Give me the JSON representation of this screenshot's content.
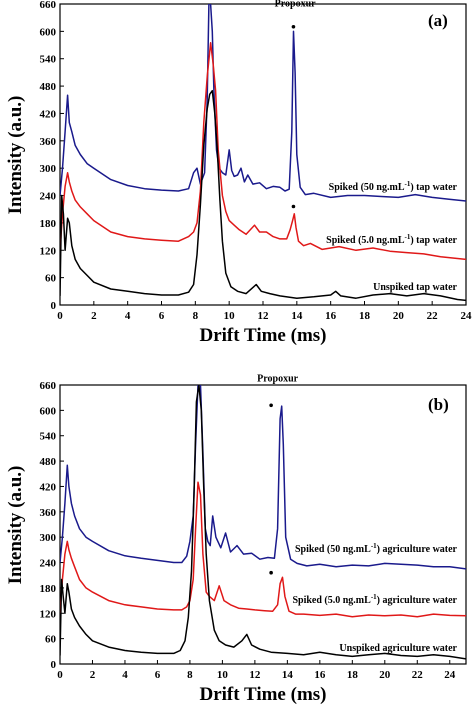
{
  "chart_data": [
    {
      "type": "line",
      "panel_label": "(a)",
      "xlabel": "Drift Time (ms)",
      "ylabel": "Intensity (a.u.)",
      "xlim": [
        0,
        24
      ],
      "ylim": [
        0,
        660
      ],
      "xticks": [
        0,
        2,
        4,
        6,
        8,
        10,
        12,
        14,
        16,
        18,
        20,
        22,
        24
      ],
      "yticks": [
        0,
        60,
        120,
        180,
        240,
        300,
        360,
        420,
        480,
        540,
        600,
        660
      ],
      "grid": false,
      "annotations": [
        {
          "text": "Propoxur",
          "x": 13.9,
          "y": 628
        }
      ],
      "series": [
        {
          "name": "Spiked (50 ng.mL-1) tap water",
          "label_parts": [
            "Spiked (50 ng.mL",
            "-1",
            ") tap water"
          ],
          "color": "#1a1a8c",
          "x": [
            0,
            0.15,
            0.3,
            0.45,
            0.55,
            0.7,
            0.9,
            1.2,
            1.6,
            2.0,
            3.0,
            4.0,
            5.0,
            6.0,
            7.0,
            7.6,
            7.9,
            8.1,
            8.3,
            8.55,
            8.7,
            8.8,
            8.9,
            9.0,
            9.1,
            9.25,
            9.4,
            9.6,
            9.8,
            10.0,
            10.15,
            10.3,
            10.5,
            10.7,
            10.9,
            11.1,
            11.4,
            11.8,
            12.2,
            12.6,
            13.0,
            13.3,
            13.55,
            13.7,
            13.8,
            13.9,
            14.0,
            14.2,
            14.5,
            15,
            16,
            17,
            18,
            19,
            20,
            21,
            22,
            23,
            24
          ],
          "y": [
            240,
            300,
            380,
            460,
            400,
            380,
            350,
            330,
            310,
            300,
            275,
            262,
            255,
            252,
            250,
            255,
            290,
            300,
            265,
            290,
            450,
            660,
            660,
            600,
            470,
            340,
            300,
            290,
            285,
            340,
            295,
            282,
            285,
            300,
            270,
            285,
            265,
            268,
            255,
            260,
            258,
            250,
            254,
            380,
            600,
            510,
            330,
            258,
            242,
            245,
            236,
            240,
            240,
            238,
            236,
            242,
            236,
            232,
            228
          ]
        },
        {
          "name": "Spiked (5.0 ng.mL-1) tap water",
          "label_parts": [
            "Spiked (5.0 ng.mL",
            "-1",
            ") tap water"
          ],
          "color": "#e01818",
          "x": [
            0,
            0.15,
            0.3,
            0.45,
            0.55,
            0.7,
            0.9,
            1.2,
            1.6,
            2.0,
            3.0,
            4.0,
            5.0,
            6.0,
            7.0,
            7.6,
            7.9,
            8.1,
            8.3,
            8.5,
            8.7,
            8.9,
            9.05,
            9.2,
            9.35,
            9.6,
            9.8,
            10.0,
            10.3,
            10.6,
            11.0,
            11.5,
            11.8,
            12.2,
            12.6,
            13.0,
            13.4,
            13.6,
            13.75,
            13.85,
            13.95,
            14.1,
            14.4,
            14.8,
            15.5,
            16.5,
            17.5,
            18.5,
            19.5,
            20.5,
            21.5,
            22.5,
            23.5,
            24
          ],
          "y": [
            120,
            200,
            260,
            290,
            270,
            250,
            230,
            215,
            200,
            185,
            160,
            150,
            145,
            142,
            140,
            150,
            160,
            180,
            250,
            400,
            500,
            575,
            530,
            470,
            340,
            240,
            205,
            185,
            175,
            165,
            155,
            175,
            160,
            160,
            150,
            145,
            145,
            165,
            185,
            200,
            170,
            140,
            130,
            135,
            122,
            128,
            120,
            125,
            118,
            115,
            112,
            106,
            102,
            100
          ]
        },
        {
          "name": "Unspiked tap water",
          "label_parts": [
            "Unspiked tap water",
            "",
            ""
          ],
          "color": "#000000",
          "x": [
            0,
            0.1,
            0.2,
            0.3,
            0.45,
            0.55,
            0.7,
            0.9,
            1.2,
            1.6,
            2.0,
            3.0,
            4.0,
            5.0,
            6.0,
            7.0,
            7.6,
            7.9,
            8.1,
            8.3,
            8.5,
            8.7,
            8.85,
            9.0,
            9.15,
            9.3,
            9.45,
            9.6,
            9.8,
            10.1,
            10.5,
            11.0,
            11.6,
            11.9,
            12.4,
            13.0,
            14.0,
            15.0,
            16.0,
            16.3,
            16.6,
            17.5,
            18.5,
            19.5,
            20.5,
            21.5,
            22.5,
            23.5,
            24
          ],
          "y": [
            20,
            240,
            200,
            120,
            190,
            180,
            130,
            100,
            80,
            65,
            50,
            35,
            30,
            25,
            22,
            22,
            28,
            45,
            110,
            220,
            350,
            430,
            462,
            470,
            420,
            340,
            230,
            140,
            70,
            40,
            30,
            25,
            45,
            30,
            25,
            20,
            15,
            18,
            22,
            30,
            20,
            15,
            22,
            25,
            20,
            25,
            20,
            12,
            10
          ]
        }
      ]
    },
    {
      "type": "line",
      "panel_label": "(b)",
      "xlabel": "Drift Time (ms)",
      "ylabel": "Intensity (a.u.)",
      "xlim": [
        0,
        25
      ],
      "ylim": [
        0,
        660
      ],
      "xticks": [
        0,
        2,
        4,
        6,
        8,
        10,
        12,
        14,
        16,
        18,
        20,
        22,
        24
      ],
      "yticks": [
        0,
        60,
        120,
        180,
        240,
        300,
        360,
        420,
        480,
        540,
        600,
        660
      ],
      "grid": false,
      "annotations": [
        {
          "text": "Propoxur",
          "x": 13.4,
          "y": 640
        }
      ],
      "series": [
        {
          "name": "Spiked (50 ng.mL-1) agriculture water",
          "label_parts": [
            "Spiked (50 ng.mL",
            "-1",
            ") agriculture water"
          ],
          "color": "#1a1a8c",
          "x": [
            0,
            0.15,
            0.3,
            0.45,
            0.55,
            0.7,
            0.9,
            1.2,
            1.6,
            2.0,
            3.0,
            4.0,
            5.0,
            6.0,
            7.0,
            7.5,
            7.8,
            8.0,
            8.2,
            8.35,
            8.5,
            8.65,
            8.8,
            8.95,
            9.1,
            9.25,
            9.4,
            9.6,
            9.9,
            10.2,
            10.5,
            10.9,
            11.3,
            11.8,
            12.3,
            12.8,
            13.2,
            13.4,
            13.55,
            13.65,
            13.75,
            13.9,
            14.2,
            14.6,
            15.2,
            16,
            17,
            18,
            19,
            20,
            21,
            22,
            23,
            24,
            25
          ],
          "y": [
            240,
            300,
            380,
            470,
            420,
            380,
            350,
            320,
            300,
            290,
            268,
            256,
            250,
            245,
            240,
            240,
            255,
            290,
            350,
            520,
            660,
            660,
            500,
            320,
            290,
            280,
            350,
            300,
            275,
            310,
            265,
            280,
            260,
            262,
            248,
            252,
            250,
            320,
            580,
            610,
            520,
            300,
            248,
            238,
            232,
            236,
            230,
            234,
            232,
            238,
            236,
            234,
            230,
            230,
            225
          ]
        },
        {
          "name": "Spiked (5.0 ng.mL-1) agriculture water",
          "label_parts": [
            "Spiked (5.0 ng.mL",
            "-1",
            ") agriculture water"
          ],
          "color": "#e01818",
          "x": [
            0,
            0.15,
            0.3,
            0.45,
            0.55,
            0.7,
            0.9,
            1.2,
            1.6,
            2.0,
            3.0,
            4.0,
            5.0,
            6.0,
            7.0,
            7.5,
            7.8,
            8.0,
            8.2,
            8.35,
            8.5,
            8.65,
            8.8,
            9.0,
            9.2,
            9.5,
            9.8,
            10.1,
            10.5,
            11.0,
            11.5,
            12.0,
            12.6,
            13.1,
            13.4,
            13.55,
            13.7,
            13.85,
            14.1,
            14.5,
            15,
            16,
            17,
            18,
            19,
            20,
            21,
            22,
            23,
            24,
            25
          ],
          "y": [
            120,
            200,
            260,
            290,
            270,
            250,
            230,
            200,
            180,
            170,
            150,
            140,
            135,
            130,
            128,
            128,
            135,
            150,
            200,
            320,
            430,
            400,
            260,
            170,
            160,
            150,
            185,
            150,
            140,
            132,
            130,
            128,
            126,
            125,
            140,
            190,
            205,
            160,
            125,
            118,
            118,
            115,
            118,
            112,
            116,
            114,
            116,
            112,
            118,
            115,
            114
          ]
        },
        {
          "name": "Unspiked agriculture water",
          "label_parts": [
            "Unspiked agriculture water",
            "",
            ""
          ],
          "color": "#000000",
          "x": [
            0,
            0.1,
            0.2,
            0.3,
            0.45,
            0.55,
            0.7,
            0.9,
            1.2,
            1.6,
            2.0,
            3.0,
            4.0,
            5.0,
            6.0,
            7.0,
            7.4,
            7.7,
            7.9,
            8.1,
            8.25,
            8.4,
            8.55,
            8.7,
            8.85,
            9.0,
            9.2,
            9.5,
            9.8,
            10.2,
            10.7,
            11.2,
            11.5,
            11.8,
            12.3,
            13.0,
            14.0,
            15.0,
            16.0,
            17,
            18,
            19,
            20,
            21,
            22,
            23,
            24,
            25
          ],
          "y": [
            20,
            200,
            160,
            120,
            190,
            170,
            130,
            110,
            90,
            70,
            55,
            40,
            32,
            28,
            25,
            25,
            32,
            55,
            110,
            220,
            400,
            620,
            660,
            600,
            420,
            260,
            150,
            80,
            55,
            45,
            40,
            55,
            70,
            45,
            35,
            28,
            25,
            22,
            28,
            22,
            18,
            22,
            25,
            20,
            18,
            22,
            18,
            12
          ]
        }
      ]
    }
  ]
}
